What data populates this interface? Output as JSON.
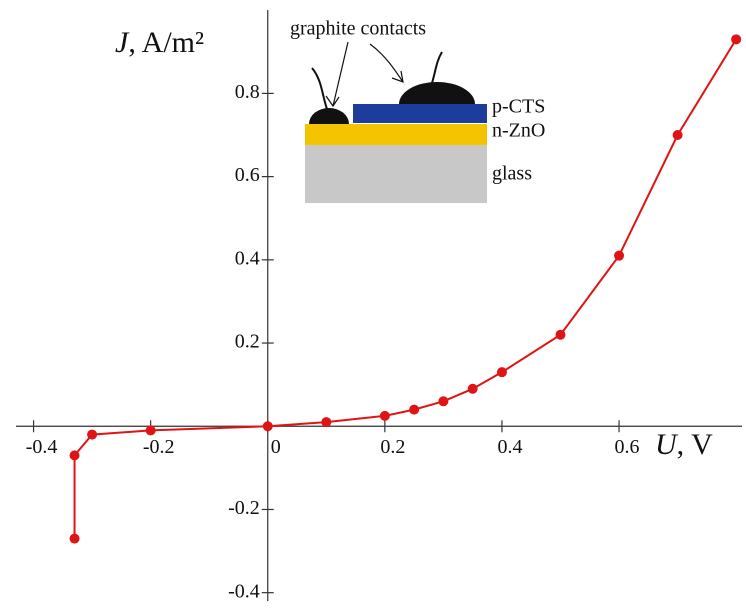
{
  "chart_data": {
    "type": "line",
    "x_label": {
      "symbol": "U",
      "unit": ", V"
    },
    "y_label": {
      "symbol": "J",
      "unit": ", A/m²"
    },
    "series": [
      {
        "color": "#e01414",
        "x": [
          -0.33,
          -0.33,
          -0.3,
          -0.2,
          0,
          0.1,
          0.2,
          0.25,
          0.3,
          0.35,
          0.4,
          0.5,
          0.6,
          0.7,
          0.8
        ],
        "values": [
          -0.27,
          -0.07,
          -0.02,
          -0.01,
          0,
          0.01,
          0.025,
          0.04,
          0.06,
          0.09,
          0.13,
          0.22,
          0.41,
          0.7,
          0.93
        ]
      }
    ],
    "xlim": [
      -0.43,
      0.81
    ],
    "ylim": [
      -0.42,
      0.95
    ],
    "xticks": [
      -0.4,
      -0.2,
      0,
      0.2,
      0.4,
      0.6
    ],
    "yticks": [
      -0.4,
      -0.2,
      0.2,
      0.4,
      0.6,
      0.8
    ],
    "inset": {
      "contacts_label": "graphite contacts",
      "layers": [
        "p-CTS",
        "n-ZnO",
        "glass"
      ]
    }
  }
}
